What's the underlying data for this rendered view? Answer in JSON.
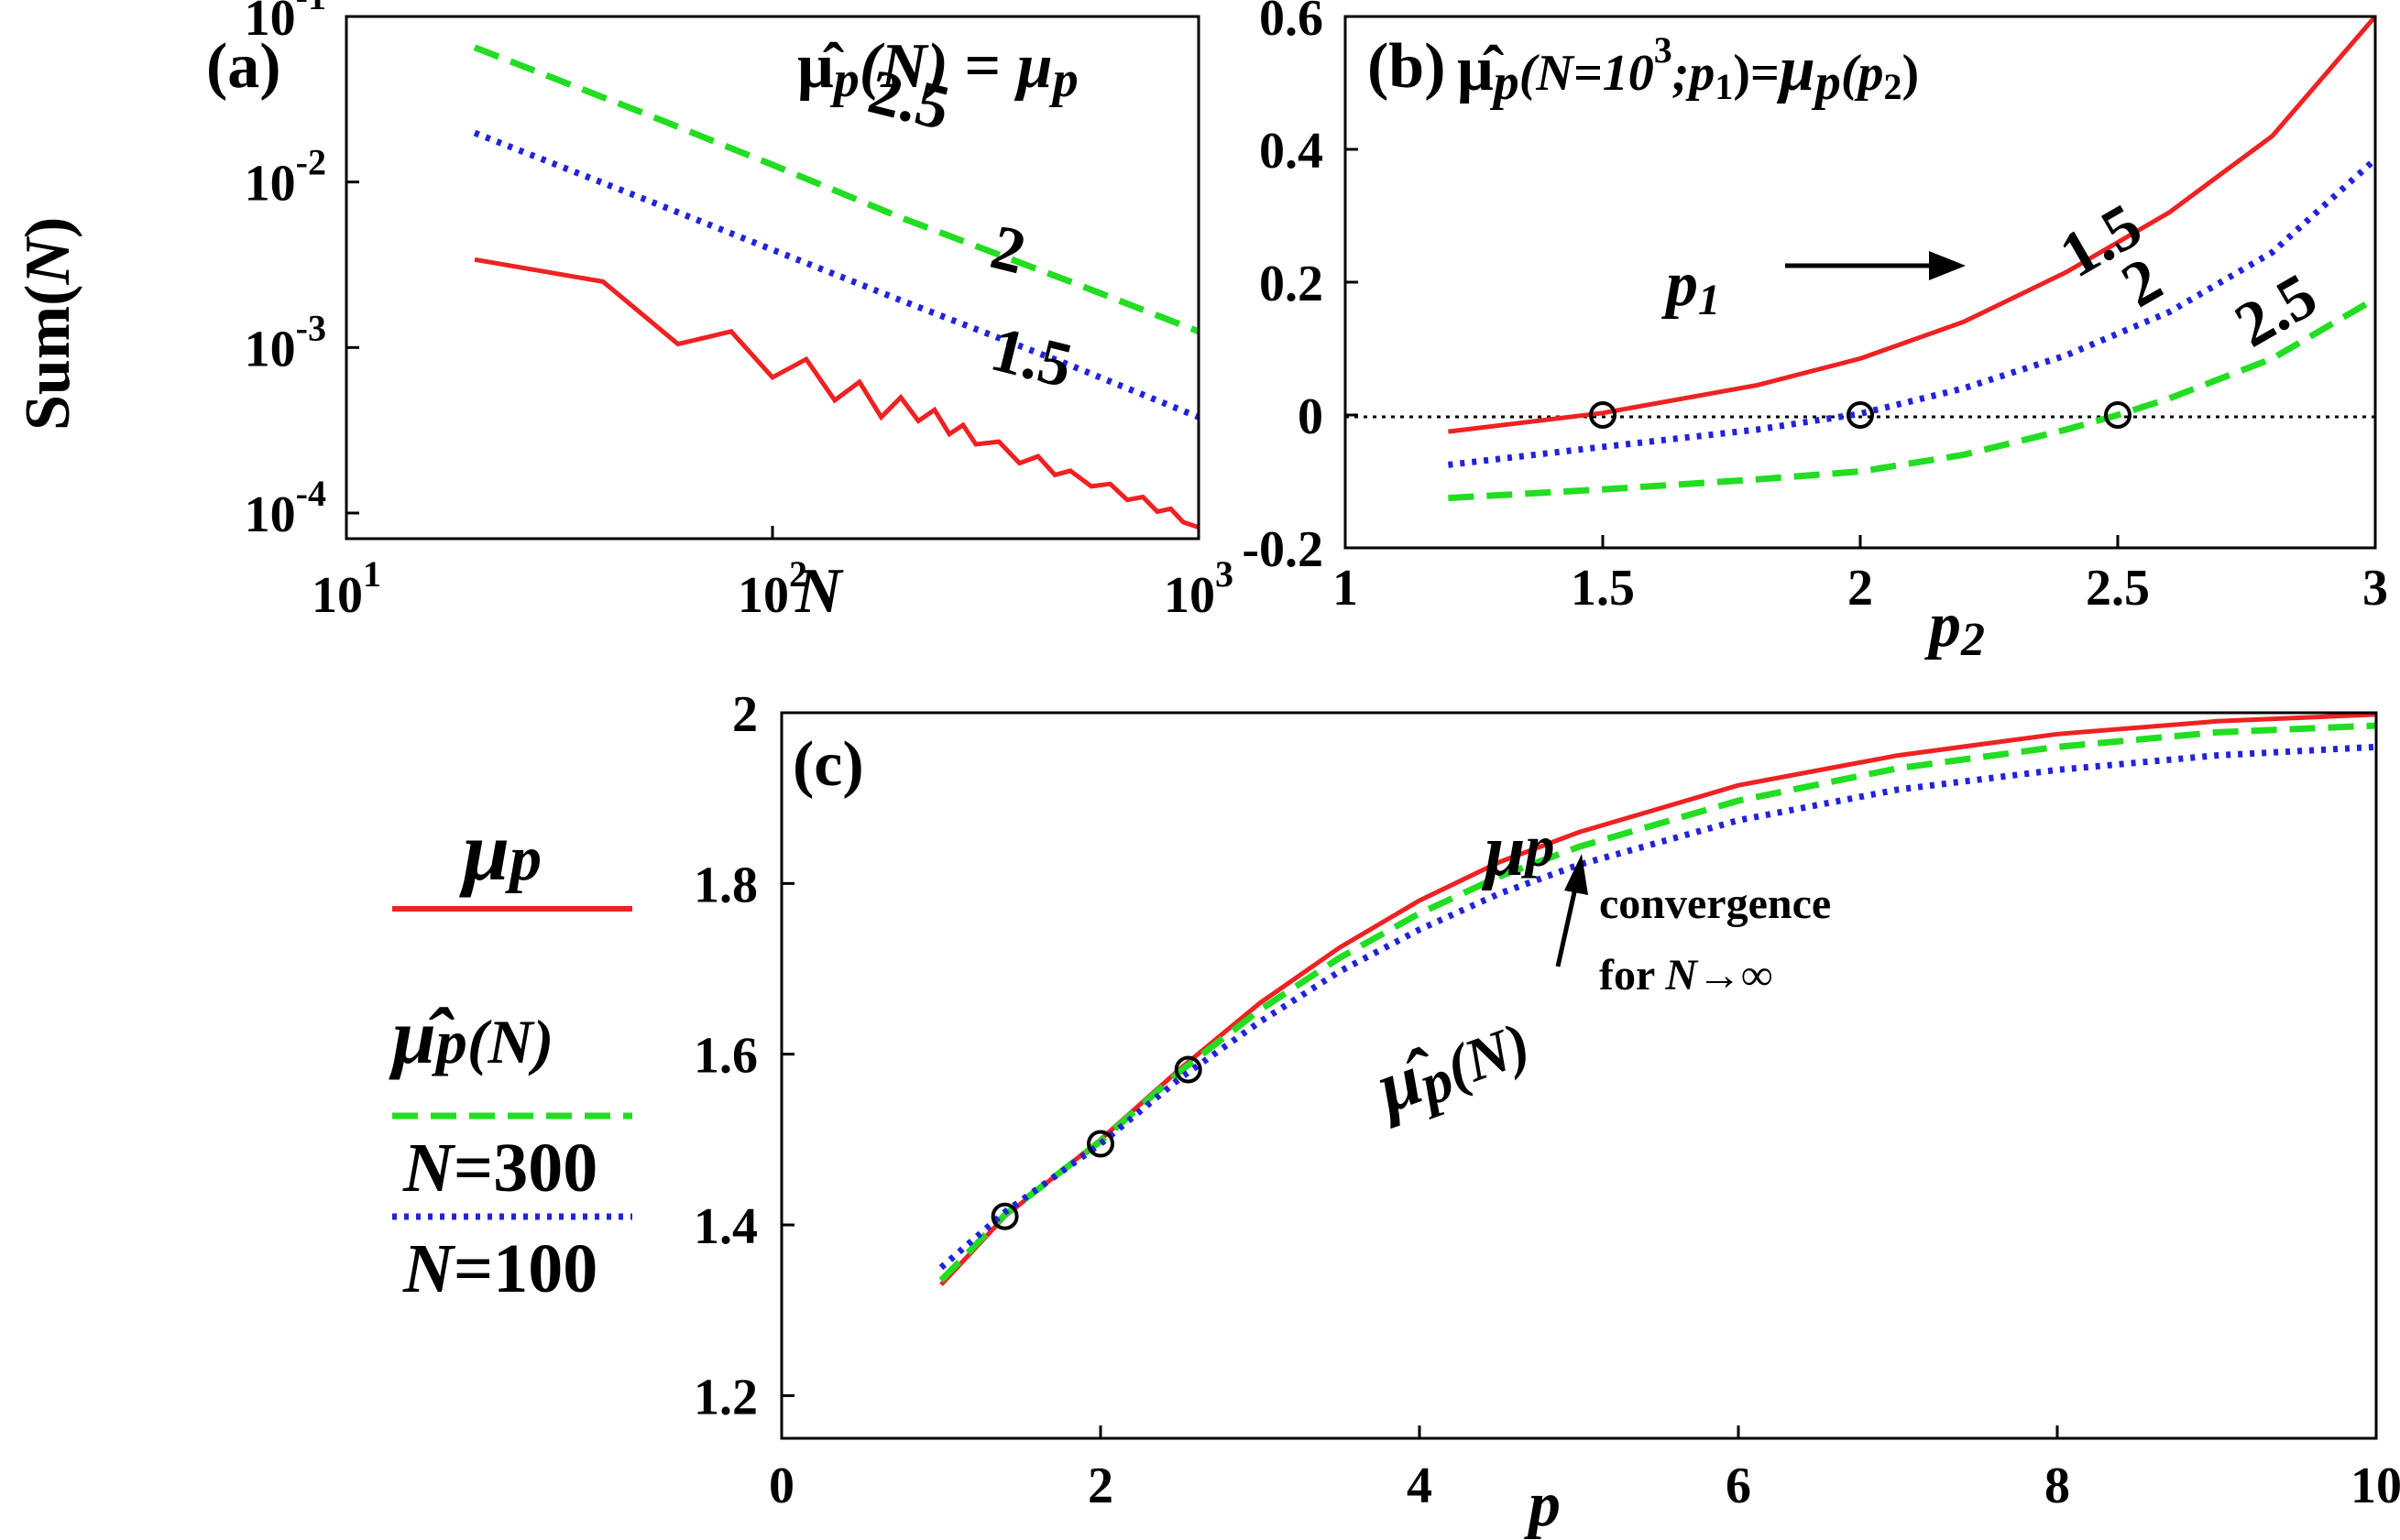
{
  "chart_data": [
    {
      "id": "a",
      "type": "line",
      "panel_label": "(a)",
      "title": {
        "mu": "μ̂",
        "p": "p",
        "n": "(N)",
        "eq": " = ",
        "mu2": "μ",
        "p2": "p"
      },
      "xlabel": "N",
      "ylabel": {
        "sum": "Sum(",
        "n": "N",
        "close": ")"
      },
      "xscale": "log",
      "yscale": "log",
      "xlim": [
        10,
        1000
      ],
      "ylim": [
        7e-05,
        0.1
      ],
      "xticks": [
        {
          "v": 10,
          "base": "10",
          "exp": "1"
        },
        {
          "v": 100,
          "base": "10",
          "exp": "2"
        },
        {
          "v": 1000,
          "base": "10",
          "exp": "3"
        }
      ],
      "yticks": [
        {
          "v": 0.1,
          "base": "10",
          "exp": "-1"
        },
        {
          "v": 0.01,
          "base": "10",
          "exp": "-2"
        },
        {
          "v": 0.001,
          "base": "10",
          "exp": "-3"
        },
        {
          "v": 0.0001,
          "base": "10",
          "exp": "-4"
        }
      ],
      "series": [
        {
          "name": "2.5",
          "color": "#22dd22",
          "style": "dashed",
          "label_at": [
            165,
            0.027
          ],
          "x": [
            20,
            50,
            100,
            200,
            500,
            1000
          ],
          "y": [
            0.065,
            0.026,
            0.0127,
            0.0061,
            0.0025,
            0.00125
          ]
        },
        {
          "name": "2",
          "color": "#2222dd",
          "style": "dotted",
          "label_at": [
            320,
            0.0031
          ],
          "x": [
            20,
            50,
            100,
            200,
            500,
            1000
          ],
          "y": [
            0.0198,
            0.0079,
            0.0039,
            0.00193,
            0.00078,
            0.00038
          ]
        },
        {
          "name": "1.5",
          "color": "#ee2222",
          "style": "solid",
          "label_at": [
            320,
            0.00075
          ],
          "x": [
            20,
            40,
            60,
            80,
            100,
            120,
            140,
            160,
            180,
            200,
            220,
            240,
            260,
            280,
            300,
            340,
            380,
            420,
            460,
            500,
            560,
            620,
            680,
            740,
            800,
            860,
            920,
            1000
          ],
          "y": [
            0.0034,
            0.0025,
            0.00105,
            0.00125,
            0.00066,
            0.00085,
            0.00048,
            0.00062,
            0.00038,
            0.0005,
            0.00036,
            0.00042,
            0.0003,
            0.00034,
            0.00026,
            0.00027,
            0.0002,
            0.00022,
            0.00017,
            0.00018,
            0.000145,
            0.00015,
            0.00012,
            0.000125,
            0.000102,
            0.000106,
            8.8e-05,
            8.2e-05
          ]
        }
      ]
    },
    {
      "id": "b",
      "type": "line",
      "panel_label": "(b)",
      "title": {
        "mu": "μ̂",
        "p": "p",
        "n": "(N=10",
        "exp": "3",
        "mid": ";p",
        "sub1": "1",
        "eq": ")=",
        "mu2": "μ",
        "p2": "p",
        "arg": "(p",
        "sub2": "2",
        "close": ")"
      },
      "xlabel": {
        "p": "p",
        "sub": "2"
      },
      "xlim": [
        1,
        3
      ],
      "ylim": [
        -0.2,
        0.6
      ],
      "xticks": [
        {
          "v": 1,
          "t": "1"
        },
        {
          "v": 1.5,
          "t": "1.5"
        },
        {
          "v": 2,
          "t": "2"
        },
        {
          "v": 2.5,
          "t": "2.5"
        },
        {
          "v": 3,
          "t": "3"
        }
      ],
      "yticks": [
        {
          "v": 0.6,
          "t": "0.6"
        },
        {
          "v": 0.4,
          "t": "0.4"
        },
        {
          "v": 0.2,
          "t": "0.2"
        },
        {
          "v": 0,
          "t": "0"
        },
        {
          "v": -0.2,
          "t": "-0.2"
        }
      ],
      "zero_line": true,
      "annotation": {
        "p": "p",
        "sub": "1"
      },
      "markers": [
        [
          1.5,
          0
        ],
        [
          2,
          0
        ],
        [
          2.5,
          0
        ]
      ],
      "series": [
        {
          "name": "1.5",
          "color": "#ee2222",
          "style": "solid",
          "label_at": [
            2.42,
            0.205
          ],
          "x": [
            1.2,
            1.5,
            1.8,
            2.0,
            2.2,
            2.4,
            2.6,
            2.8,
            3.0
          ],
          "y": [
            -0.025,
            0.003,
            0.045,
            0.085,
            0.14,
            0.215,
            0.305,
            0.42,
            0.6
          ]
        },
        {
          "name": "2",
          "color": "#2222dd",
          "style": "dotted",
          "label_at": [
            2.54,
            0.16
          ],
          "x": [
            1.2,
            1.5,
            1.8,
            2.0,
            2.2,
            2.4,
            2.6,
            2.8,
            3.0
          ],
          "y": [
            -0.075,
            -0.048,
            -0.022,
            0.002,
            0.04,
            0.09,
            0.155,
            0.245,
            0.385
          ]
        },
        {
          "name": "2.5",
          "color": "#22dd22",
          "style": "dashed",
          "label_at": [
            2.76,
            0.1
          ],
          "x": [
            1.2,
            1.5,
            1.8,
            2.0,
            2.2,
            2.4,
            2.5,
            2.6,
            2.8,
            3.0
          ],
          "y": [
            -0.125,
            -0.112,
            -0.097,
            -0.085,
            -0.06,
            -0.022,
            0.0,
            0.025,
            0.085,
            0.175
          ]
        }
      ]
    },
    {
      "id": "c",
      "type": "line",
      "panel_label": "(c)",
      "xlabel": "p",
      "xlim": [
        0,
        10
      ],
      "ylim": [
        1.15,
        2.0
      ],
      "xticks": [
        {
          "v": 0,
          "t": "0"
        },
        {
          "v": 2,
          "t": "2"
        },
        {
          "v": 4,
          "t": "4"
        },
        {
          "v": 6,
          "t": "6"
        },
        {
          "v": 8,
          "t": "8"
        },
        {
          "v": 10,
          "t": "10"
        }
      ],
      "yticks": [
        {
          "v": 1.2,
          "t": "1.2"
        },
        {
          "v": 1.4,
          "t": "1.4"
        },
        {
          "v": 1.6,
          "t": "1.6"
        },
        {
          "v": 1.8,
          "t": "1.8"
        },
        {
          "v": 2,
          "t": "2"
        }
      ],
      "markers": [
        [
          1.4,
          1.41
        ],
        [
          2.0,
          1.495
        ],
        [
          2.55,
          1.582
        ]
      ],
      "curve_labels": {
        "mu": {
          "mu": "μ",
          "p": "p",
          "at": [
            4.5,
            1.84
          ]
        },
        "muhat": {
          "mu": "μ̂",
          "p": "p",
          "n": "(N)",
          "at": [
            3.6,
            1.6
          ]
        }
      },
      "convergence": {
        "line1": "convergence",
        "line2_prefix": "for ",
        "line2_var": "N",
        "line2_suffix": "→∞"
      },
      "legend": {
        "mu": {
          "mu": "μ",
          "p": "p"
        },
        "muhat": {
          "mu": "μ̂",
          "p": "p",
          "n": "(N)"
        },
        "n300": {
          "var": "N",
          "val": "=300"
        },
        "n100": {
          "var": "N",
          "val": "=100"
        }
      },
      "series": [
        {
          "name": "mu_p",
          "color": "#ee2222",
          "style": "solid",
          "x": [
            1,
            1.4,
            2,
            2.5,
            3,
            3.5,
            4,
            4.5,
            5,
            6,
            7,
            8,
            9,
            10
          ],
          "y": [
            1.33,
            1.41,
            1.5,
            1.583,
            1.66,
            1.725,
            1.78,
            1.825,
            1.86,
            1.915,
            1.95,
            1.975,
            1.99,
            1.998
          ]
        },
        {
          "name": "N=300",
          "color": "#22dd22",
          "style": "dashed",
          "x": [
            1,
            1.4,
            2,
            2.5,
            3,
            3.5,
            4,
            4.5,
            5,
            6,
            7,
            8,
            9,
            10
          ],
          "y": [
            1.335,
            1.412,
            1.498,
            1.58,
            1.652,
            1.713,
            1.765,
            1.808,
            1.843,
            1.897,
            1.935,
            1.96,
            1.977,
            1.985
          ]
        },
        {
          "name": "N=100",
          "color": "#2222dd",
          "style": "dotted",
          "x": [
            1,
            1.4,
            2,
            2.5,
            3,
            3.5,
            4,
            4.5,
            5,
            6,
            7,
            8,
            9,
            10
          ],
          "y": [
            1.35,
            1.415,
            1.495,
            1.572,
            1.638,
            1.697,
            1.746,
            1.788,
            1.822,
            1.874,
            1.91,
            1.933,
            1.95,
            1.96
          ]
        }
      ]
    }
  ]
}
